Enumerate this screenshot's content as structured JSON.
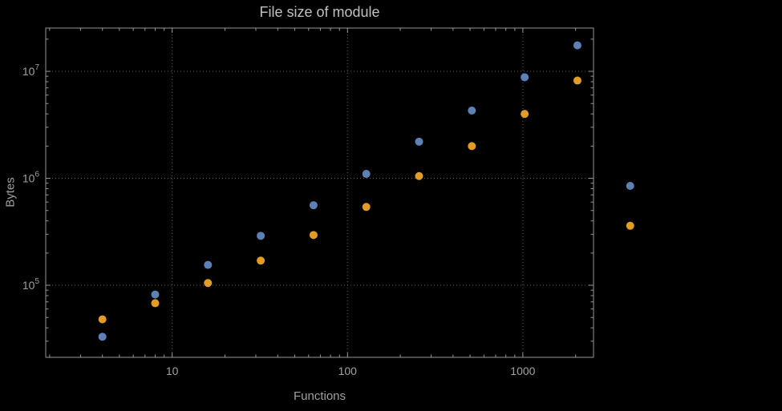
{
  "chart_data": {
    "type": "scatter",
    "title": "File size of module",
    "xlabel": "Functions",
    "ylabel": "Bytes",
    "xscale": "log",
    "yscale": "log",
    "xlim": [
      1.9,
      2530
    ],
    "ylim": [
      21200,
      25400000
    ],
    "grid": true,
    "legend": false,
    "x_ticks": [
      {
        "value": 10,
        "label": "10"
      },
      {
        "value": 100,
        "label": "100"
      },
      {
        "value": 1000,
        "label": "1000"
      }
    ],
    "y_ticks": [
      {
        "value": 100000,
        "mantissa": "10",
        "exponent": "5"
      },
      {
        "value": 1000000,
        "mantissa": "10",
        "exponent": "6"
      },
      {
        "value": 10000000,
        "mantissa": "10",
        "exponent": "7"
      }
    ],
    "x": [
      4,
      8,
      16,
      32,
      64,
      128,
      256,
      512,
      1024,
      2048,
      4096
    ],
    "series": [
      {
        "name": "series-blue",
        "color": "#5e81b5",
        "values": [
          33000,
          82000,
          155000,
          290000,
          560000,
          1100000,
          2200000,
          4300000,
          8800000,
          17500000,
          850000
        ]
      },
      {
        "name": "series-orange",
        "color": "#e19c24",
        "values": [
          48000,
          68000,
          105000,
          170000,
          295000,
          540000,
          1050000,
          2000000,
          4000000,
          8200000,
          360000
        ]
      }
    ],
    "colors": {
      "background": "#000000",
      "frame": "#969696",
      "grid": "#5a5a5a",
      "tick_text": "#a0a0a0",
      "title_text": "#c0c0c0",
      "label_text": "#a0a0a0"
    }
  }
}
